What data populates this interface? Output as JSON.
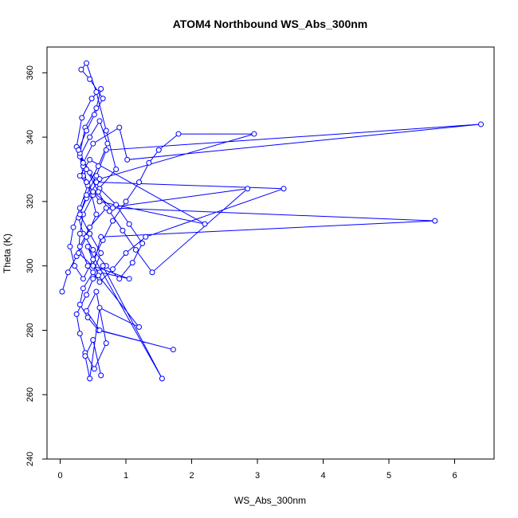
{
  "chart_data": {
    "type": "line",
    "title": "ATOM4 Northbound WS_Abs_300nm",
    "xlabel": "WS_Abs_300nm",
    "ylabel": "Theta (K)",
    "xlim": [
      -0.2,
      6.6
    ],
    "ylim": [
      240,
      368
    ],
    "xticks": [
      0,
      1,
      2,
      3,
      4,
      5,
      6
    ],
    "yticks": [
      240,
      260,
      280,
      300,
      320,
      340,
      360
    ],
    "grid": false,
    "legend": "none",
    "color": "#0000ff",
    "marker": "open-circle",
    "series": [
      {
        "x": [
          0.03,
          0.12,
          0.25,
          0.4,
          0.55,
          0.48,
          0.35,
          0.3,
          0.45,
          0.6,
          0.72,
          0.58,
          0.42,
          0.3,
          0.2,
          0.15,
          0.22,
          0.35,
          0.5,
          0.65,
          0.8,
          1.0,
          1.2,
          1.35,
          1.5,
          1.8,
          2.95,
          0.6,
          0.4,
          0.28,
          0.35,
          0.5,
          0.7,
          0.9,
          1.1,
          1.25,
          1.05,
          0.85,
          0.6,
          0.45,
          0.3,
          0.38,
          0.55,
          0.62,
          0.48,
          0.33,
          0.25,
          0.4,
          0.58,
          0.75,
          0.95,
          1.15,
          1.4,
          2.85,
          0.7,
          0.45,
          0.3,
          0.42,
          0.6,
          0.8,
          1.0,
          1.3,
          3.4,
          0.55,
          0.35,
          0.28,
          0.4,
          0.52,
          0.65,
          0.45,
          0.32,
          0.4,
          0.55,
          0.7,
          0.85,
          0.5,
          0.35,
          0.3,
          0.28,
          0.6,
          1.05,
          0.5,
          0.62,
          5.7,
          0.8,
          0.5,
          0.3,
          0.45,
          2.2,
          0.6,
          0.4,
          0.35,
          0.5,
          0.9,
          1.02,
          6.4,
          0.7,
          0.55,
          0.4,
          0.3,
          0.45,
          0.62,
          0.5,
          0.35,
          0.3,
          0.42,
          0.58,
          1.72,
          0.6,
          0.4,
          0.55,
          0.7,
          0.52,
          0.38,
          0.3,
          0.25,
          0.4,
          0.5,
          0.65,
          1.55,
          0.42,
          0.58,
          1.2,
          0.6,
          0.45,
          0.38,
          0.5,
          0.62
        ],
        "y": [
          292,
          298,
          303,
          309,
          316,
          322,
          328,
          334,
          340,
          345,
          338,
          331,
          325,
          318,
          312,
          306,
          300,
          296,
          302,
          308,
          314,
          320,
          326,
          332,
          336,
          341,
          341,
          327,
          321,
          315,
          310,
          305,
          300,
          296,
          301,
          307,
          313,
          319,
          324,
          329,
          335,
          343,
          349,
          355,
          352,
          346,
          337,
          330,
          323,
          317,
          311,
          305,
          298,
          324,
          318,
          312,
          306,
          300,
          295,
          299,
          304,
          309,
          324,
          326,
          331,
          336,
          342,
          347,
          352,
          358,
          361,
          363,
          354,
          342,
          330,
          322,
          316,
          310,
          304,
          298,
          296,
          300,
          309,
          314,
          318,
          323,
          328,
          333,
          313,
          320,
          326,
          332,
          338,
          343,
          333,
          344,
          336,
          328,
          322,
          316,
          310,
          304,
          298,
          293,
          288,
          284,
          280,
          274,
          280,
          286,
          292,
          276,
          268,
          273,
          279,
          285,
          291,
          296,
          300,
          265,
          306,
          297,
          281,
          287,
          265,
          272,
          277,
          266
        ]
      }
    ]
  }
}
